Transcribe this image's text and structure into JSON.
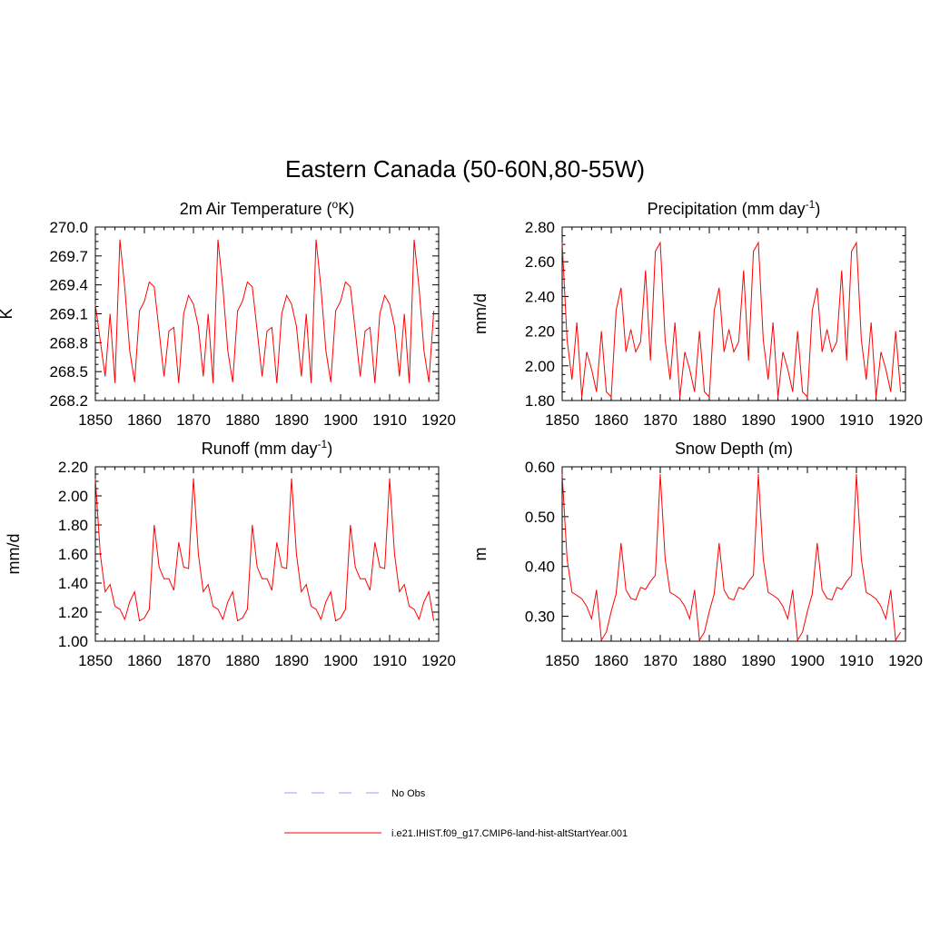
{
  "title": "Eastern Canada (50-60N,80-55W)",
  "legend": {
    "entries": [
      {
        "label": "No Obs",
        "color": "#9999ff",
        "dash": true
      },
      {
        "label": "i.e21.IHIST.f09_g17.CMIP6-land-hist-altStartYear.001",
        "color": "#ff0000",
        "dash": false
      }
    ]
  },
  "chart_data": [
    {
      "type": "line",
      "title": "2m Air Temperature (",
      "title_sup": "o",
      "title_suffix": "K)",
      "ylabel": "K",
      "xlim": [
        1850,
        1920
      ],
      "ylim": [
        268.2,
        270.0
      ],
      "yticks": [
        "268.2",
        "268.5",
        "268.8",
        "269.1",
        "269.4",
        "269.7",
        "270.0"
      ],
      "xticks": [
        "1850",
        "1860",
        "1870",
        "1880",
        "1890",
        "1900",
        "1910",
        "1920"
      ],
      "color": "#ff0000",
      "x_start": 1850,
      "values": [
        269.2,
        268.82,
        268.45,
        269.1,
        268.38,
        269.87,
        269.37,
        268.72,
        268.39,
        269.13,
        269.23,
        269.43,
        269.38,
        268.92,
        268.45,
        268.92,
        268.96,
        268.38,
        269.1,
        269.29,
        269.2,
        268.97,
        268.45,
        269.1,
        268.38,
        269.87,
        269.37,
        268.72,
        268.39,
        269.13,
        269.23,
        269.43,
        269.38,
        268.92,
        268.45,
        268.92,
        268.96,
        268.38,
        269.1,
        269.29,
        269.2,
        268.97,
        268.45,
        269.1,
        268.38,
        269.87,
        269.37,
        268.72,
        268.39,
        269.13,
        269.23,
        269.43,
        269.38,
        268.92,
        268.45,
        268.92,
        268.96,
        268.38,
        269.1,
        269.29,
        269.2,
        268.97,
        268.45,
        269.1,
        268.38,
        269.87,
        269.37,
        268.72,
        268.39,
        269.13
      ]
    },
    {
      "type": "line",
      "title": "Precipitation (mm day",
      "title_sup": "-1",
      "title_suffix": ")",
      "ylabel": "mm/d",
      "xlim": [
        1850,
        1920
      ],
      "ylim": [
        1.8,
        2.8
      ],
      "yticks": [
        "1.80",
        "2.00",
        "2.20",
        "2.40",
        "2.60",
        "2.80"
      ],
      "xticks": [
        "1850",
        "1860",
        "1870",
        "1880",
        "1890",
        "1900",
        "1910",
        "1920"
      ],
      "color": "#ff0000",
      "x_start": 1850,
      "values": [
        2.71,
        2.15,
        1.92,
        2.25,
        1.82,
        2.08,
        1.98,
        1.85,
        2.2,
        1.85,
        1.82,
        2.32,
        2.45,
        2.08,
        2.21,
        2.08,
        2.14,
        2.55,
        2.03,
        2.66,
        2.71,
        2.15,
        1.92,
        2.25,
        1.82,
        2.08,
        1.98,
        1.85,
        2.2,
        1.85,
        1.82,
        2.32,
        2.45,
        2.08,
        2.21,
        2.08,
        2.14,
        2.55,
        2.03,
        2.66,
        2.71,
        2.15,
        1.92,
        2.25,
        1.82,
        2.08,
        1.98,
        1.85,
        2.2,
        1.85,
        1.82,
        2.32,
        2.45,
        2.08,
        2.21,
        2.08,
        2.14,
        2.55,
        2.03,
        2.66,
        2.71,
        2.15,
        1.92,
        2.25,
        1.82,
        2.08,
        1.98,
        1.85,
        2.2,
        1.85
      ]
    },
    {
      "type": "line",
      "title": "Runoff (mm day",
      "title_sup": "-1",
      "title_suffix": ")",
      "ylabel": "mm/d",
      "xlim": [
        1850,
        1920
      ],
      "ylim": [
        1.0,
        2.2
      ],
      "yticks": [
        "1.00",
        "1.20",
        "1.40",
        "1.60",
        "1.80",
        "2.00",
        "2.20"
      ],
      "xticks": [
        "1850",
        "1860",
        "1870",
        "1880",
        "1890",
        "1900",
        "1910",
        "1920"
      ],
      "color": "#ff0000",
      "x_start": 1850,
      "values": [
        2.12,
        1.6,
        1.34,
        1.39,
        1.24,
        1.22,
        1.15,
        1.27,
        1.34,
        1.14,
        1.16,
        1.22,
        1.8,
        1.51,
        1.43,
        1.43,
        1.35,
        1.68,
        1.51,
        1.5,
        2.12,
        1.6,
        1.34,
        1.39,
        1.24,
        1.22,
        1.15,
        1.27,
        1.34,
        1.14,
        1.16,
        1.22,
        1.8,
        1.51,
        1.43,
        1.43,
        1.35,
        1.68,
        1.51,
        1.5,
        2.12,
        1.6,
        1.34,
        1.39,
        1.24,
        1.22,
        1.15,
        1.27,
        1.34,
        1.14,
        1.16,
        1.22,
        1.8,
        1.51,
        1.43,
        1.43,
        1.35,
        1.68,
        1.51,
        1.5,
        2.12,
        1.6,
        1.34,
        1.39,
        1.24,
        1.22,
        1.15,
        1.27,
        1.34,
        1.14
      ]
    },
    {
      "type": "line",
      "title": "Snow Depth (m)",
      "title_sup": "",
      "title_suffix": "",
      "ylabel": "m",
      "xlim": [
        1850,
        1920
      ],
      "ylim": [
        0.25,
        0.6
      ],
      "yticks": [
        "0.30",
        "0.40",
        "0.50",
        "0.60"
      ],
      "xticks": [
        "1850",
        "1860",
        "1870",
        "1880",
        "1890",
        "1900",
        "1910",
        "1920"
      ],
      "color": "#ff0000",
      "x_start": 1850,
      "values": [
        0.585,
        0.415,
        0.348,
        0.342,
        0.335,
        0.32,
        0.295,
        0.353,
        0.252,
        0.268,
        0.31,
        0.345,
        0.447,
        0.353,
        0.336,
        0.333,
        0.358,
        0.354,
        0.37,
        0.382,
        0.585,
        0.415,
        0.348,
        0.342,
        0.335,
        0.32,
        0.295,
        0.353,
        0.252,
        0.268,
        0.31,
        0.345,
        0.447,
        0.353,
        0.336,
        0.333,
        0.358,
        0.354,
        0.37,
        0.382,
        0.585,
        0.415,
        0.348,
        0.342,
        0.335,
        0.32,
        0.295,
        0.353,
        0.252,
        0.268,
        0.31,
        0.345,
        0.447,
        0.353,
        0.336,
        0.333,
        0.358,
        0.354,
        0.37,
        0.382,
        0.585,
        0.415,
        0.348,
        0.342,
        0.335,
        0.32,
        0.295,
        0.353,
        0.252,
        0.268
      ]
    }
  ]
}
